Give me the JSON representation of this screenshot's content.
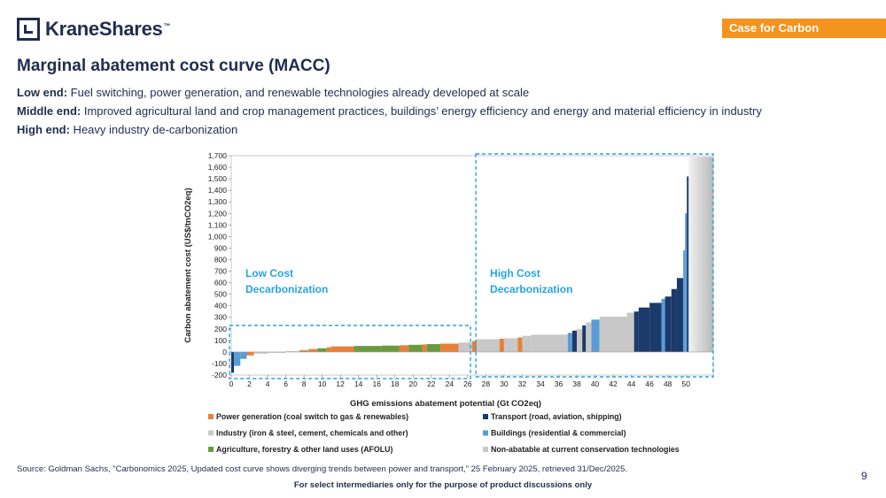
{
  "header": {
    "logo_text": "KraneShares",
    "logo_tm": "™",
    "tag": "Case for Carbon"
  },
  "title": "Marginal abatement cost curve (MACC)",
  "bullets": [
    {
      "label": "Low end:",
      "text": " Fuel switching, power generation, and renewable technologies already developed at scale"
    },
    {
      "label": "Middle end:",
      "text": " Improved agricultural land and crop management practices, buildings’ energy efficiency and energy and material efficiency in industry"
    },
    {
      "label": "High end:",
      "text": " Heavy industry de-carbonization"
    }
  ],
  "chart_data": {
    "type": "bar",
    "variant": "marginal abatement cost curve (variable-width bars)",
    "xlabel": "GHG emissions abatement potential (Gt CO2eq)",
    "ylabel": "Carbon abatement cost (US$/tnCO2eq)",
    "xlim": [
      0,
      53
    ],
    "ylim": [
      -200,
      1700
    ],
    "x_ticks": [
      0,
      2,
      4,
      6,
      8,
      10,
      12,
      14,
      16,
      18,
      20,
      22,
      24,
      26,
      28,
      30,
      32,
      34,
      36,
      38,
      40,
      42,
      44,
      46,
      48,
      50
    ],
    "y_ticks": [
      -200,
      -100,
      0,
      100,
      200,
      300,
      400,
      500,
      600,
      700,
      800,
      900,
      1000,
      1100,
      1200,
      1300,
      1400,
      1500,
      1600,
      1700
    ],
    "y_tick_labels": [
      "-200",
      "-100",
      "0",
      "100",
      "200",
      "300",
      "400",
      "500",
      "600",
      "700",
      "800",
      "900",
      "1,000",
      "1,100",
      "1,200",
      "1,300",
      "1,400",
      "1,500",
      "1,600",
      "1,700"
    ],
    "annotations": [
      {
        "text": "Low Cost\nDecarbonization",
        "region_x": [
          0,
          26.7
        ],
        "region_y": [
          -200,
          230
        ]
      },
      {
        "text": "High Cost\nDecarbonization",
        "region_x": [
          26.7,
          53
        ],
        "region_y": [
          -200,
          1700
        ]
      }
    ],
    "categories": [
      {
        "key": "power",
        "label": "Power generation (coal switch to gas & renewables)",
        "color": "#e8803a"
      },
      {
        "key": "transport",
        "label": "Transport (road, aviation, shipping)",
        "color": "#1a3a6b"
      },
      {
        "key": "industry",
        "label": "Industry (iron & steel, cement, chemicals and other)",
        "color": "#c8c8c8"
      },
      {
        "key": "buildings",
        "label": "Buildings (residential & commercial)",
        "color": "#5b9bd5"
      },
      {
        "key": "afolu",
        "label": "Agriculture, forestry & other land uses (AFOLU)",
        "color": "#6a9a3f"
      },
      {
        "key": "nonabatable",
        "label": "Non-abatable at current conservation technologies",
        "color": "#d8d8d8"
      }
    ],
    "bars": [
      {
        "x0": 0.0,
        "x1": 0.3,
        "value": -180,
        "cat": "transport"
      },
      {
        "x0": 0.3,
        "x1": 1.0,
        "value": -120,
        "cat": "buildings"
      },
      {
        "x0": 1.0,
        "x1": 1.7,
        "value": -60,
        "cat": "buildings"
      },
      {
        "x0": 1.7,
        "x1": 2.5,
        "value": -30,
        "cat": "power"
      },
      {
        "x0": 2.5,
        "x1": 4.0,
        "value": -15,
        "cat": "industry"
      },
      {
        "x0": 4.0,
        "x1": 6.0,
        "value": -8,
        "cat": "industry"
      },
      {
        "x0": 6.0,
        "x1": 7.5,
        "value": 8,
        "cat": "industry"
      },
      {
        "x0": 7.5,
        "x1": 8.5,
        "value": 15,
        "cat": "power"
      },
      {
        "x0": 8.5,
        "x1": 9.5,
        "value": 25,
        "cat": "power"
      },
      {
        "x0": 9.5,
        "x1": 10.5,
        "value": 32,
        "cat": "afolu"
      },
      {
        "x0": 10.5,
        "x1": 11.0,
        "value": 40,
        "cat": "power"
      },
      {
        "x0": 11.0,
        "x1": 13.5,
        "value": 48,
        "cat": "power"
      },
      {
        "x0": 13.5,
        "x1": 16.5,
        "value": 52,
        "cat": "afolu"
      },
      {
        "x0": 16.5,
        "x1": 18.5,
        "value": 55,
        "cat": "afolu"
      },
      {
        "x0": 18.5,
        "x1": 19.5,
        "value": 58,
        "cat": "power"
      },
      {
        "x0": 19.5,
        "x1": 21.0,
        "value": 62,
        "cat": "afolu"
      },
      {
        "x0": 21.0,
        "x1": 21.5,
        "value": 65,
        "cat": "power"
      },
      {
        "x0": 21.5,
        "x1": 23.0,
        "value": 68,
        "cat": "afolu"
      },
      {
        "x0": 23.0,
        "x1": 25.0,
        "value": 72,
        "cat": "power"
      },
      {
        "x0": 25.0,
        "x1": 26.5,
        "value": 82,
        "cat": "industry"
      },
      {
        "x0": 26.5,
        "x1": 27.0,
        "value": 95,
        "cat": "power"
      },
      {
        "x0": 27.0,
        "x1": 29.5,
        "value": 110,
        "cat": "industry"
      },
      {
        "x0": 29.5,
        "x1": 30.0,
        "value": 115,
        "cat": "power"
      },
      {
        "x0": 30.0,
        "x1": 31.5,
        "value": 118,
        "cat": "industry"
      },
      {
        "x0": 31.5,
        "x1": 32.0,
        "value": 125,
        "cat": "power"
      },
      {
        "x0": 32.0,
        "x1": 33.0,
        "value": 140,
        "cat": "industry"
      },
      {
        "x0": 33.0,
        "x1": 37.0,
        "value": 150,
        "cat": "industry"
      },
      {
        "x0": 37.0,
        "x1": 37.5,
        "value": 165,
        "cat": "buildings"
      },
      {
        "x0": 37.5,
        "x1": 38.0,
        "value": 185,
        "cat": "transport"
      },
      {
        "x0": 38.0,
        "x1": 38.6,
        "value": 200,
        "cat": "industry"
      },
      {
        "x0": 38.6,
        "x1": 39.0,
        "value": 230,
        "cat": "transport"
      },
      {
        "x0": 39.0,
        "x1": 39.6,
        "value": 255,
        "cat": "industry"
      },
      {
        "x0": 39.6,
        "x1": 40.5,
        "value": 280,
        "cat": "buildings"
      },
      {
        "x0": 40.5,
        "x1": 43.5,
        "value": 305,
        "cat": "industry"
      },
      {
        "x0": 43.5,
        "x1": 44.3,
        "value": 340,
        "cat": "industry"
      },
      {
        "x0": 44.3,
        "x1": 44.8,
        "value": 350,
        "cat": "transport"
      },
      {
        "x0": 44.8,
        "x1": 46.0,
        "value": 385,
        "cat": "transport"
      },
      {
        "x0": 46.0,
        "x1": 47.3,
        "value": 425,
        "cat": "transport"
      },
      {
        "x0": 47.3,
        "x1": 47.7,
        "value": 460,
        "cat": "buildings"
      },
      {
        "x0": 47.7,
        "x1": 48.4,
        "value": 480,
        "cat": "transport"
      },
      {
        "x0": 48.4,
        "x1": 49.0,
        "value": 545,
        "cat": "transport"
      },
      {
        "x0": 49.0,
        "x1": 49.7,
        "value": 640,
        "cat": "transport"
      },
      {
        "x0": 49.7,
        "x1": 49.9,
        "value": 880,
        "cat": "buildings"
      },
      {
        "x0": 49.9,
        "x1": 50.1,
        "value": 1200,
        "cat": "buildings"
      },
      {
        "x0": 50.1,
        "x1": 50.3,
        "value": 1520,
        "cat": "transport"
      },
      {
        "x0": 50.3,
        "x1": 54.0,
        "value": 1690,
        "cat": "nonabatable"
      }
    ]
  },
  "source": "Source: Goldman Sachs, \"Carbonomics 2025, Updated cost curve shows diverging trends between power and transport,\" 25 February 2025, retrieved 31/Dec/2025.",
  "page_number": "9",
  "footer": "For select intermediaries only for the purpose of product discussions only"
}
